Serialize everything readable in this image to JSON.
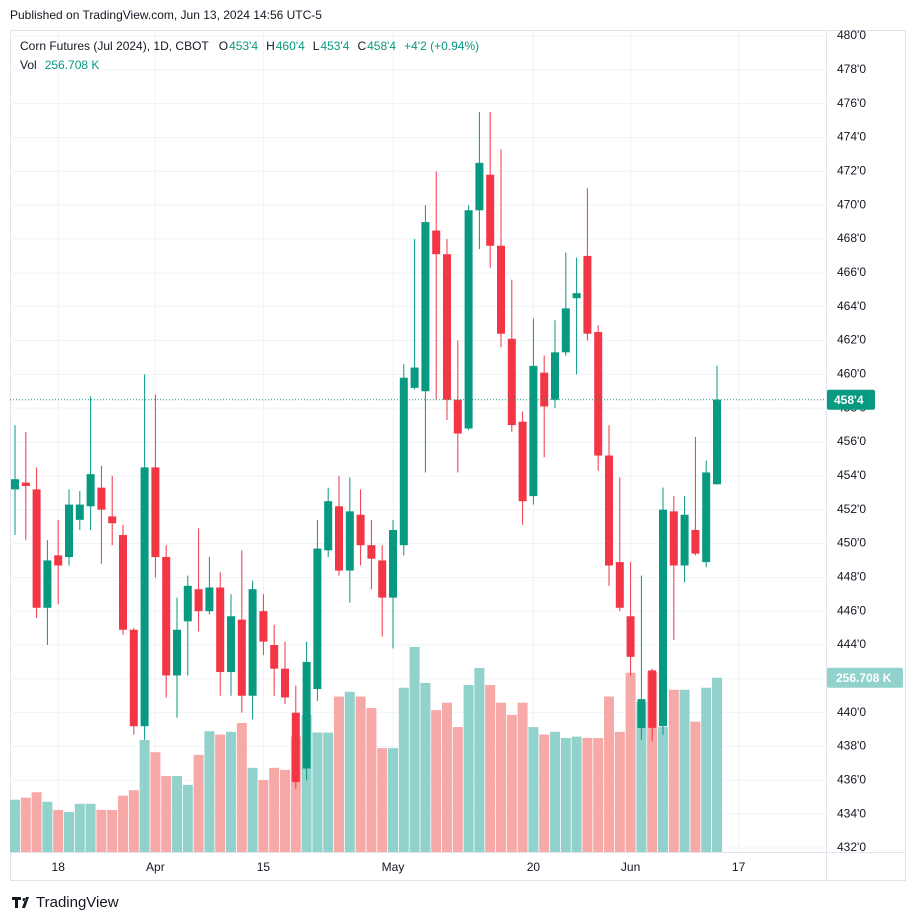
{
  "published": "Published on TradingView.com, Jun 13, 2024 14:56 UTC-5",
  "brand": "TradingView",
  "chart_data": {
    "type": "candlestick",
    "symbol": "Corn Futures (Jul 2024), 1D, CBOT",
    "legend": [
      {
        "key": "O",
        "text": "453'4"
      },
      {
        "key": "H",
        "text": "460'4"
      },
      {
        "key": "L",
        "text": "453'4"
      },
      {
        "key": "C",
        "text": "458'4"
      }
    ],
    "change": "+4'2 (+0.94%)",
    "volume_name": "Vol",
    "volume_label": "256.708 K",
    "last_price_label": "458'4",
    "up_color": "#089981",
    "down_color": "#f23645",
    "up_volume_color": "#92d2cc",
    "down_volume_color": "#f7a9a7",
    "categories": [
      null,
      null,
      null,
      null,
      "18",
      null,
      null,
      null,
      null,
      null,
      null,
      null,
      null,
      "Apr",
      null,
      null,
      null,
      null,
      null,
      null,
      null,
      null,
      null,
      "15",
      null,
      null,
      null,
      null,
      null,
      null,
      null,
      null,
      null,
      null,
      null,
      "May",
      null,
      null,
      null,
      null,
      null,
      null,
      null,
      null,
      null,
      null,
      null,
      null,
      "20",
      null,
      null,
      null,
      null,
      null,
      null,
      null,
      null,
      "Jun",
      null,
      null,
      null,
      null,
      null,
      null,
      null,
      null,
      null,
      "17"
    ],
    "open": [
      453.2,
      453.6,
      453.2,
      446.2,
      449.3,
      449.2,
      451.4,
      452.2,
      453.3,
      451.6,
      450.5,
      444.9,
      439.2,
      454.5,
      449.2,
      442.2,
      445.4,
      447.3,
      446.0,
      447.4,
      442.4,
      445.5,
      441.0,
      446.0,
      444.0,
      442.6,
      440.0,
      436.7,
      441.4,
      449.6,
      452.2,
      448.4,
      451.7,
      449.9,
      449.0,
      446.8,
      449.9,
      459.2,
      459.0,
      468.5,
      467.1,
      458.5,
      456.8,
      469.7,
      471.8,
      467.6,
      462.1,
      457.2,
      452.8,
      460.1,
      458.5,
      461.3,
      464.5,
      467.0,
      462.5,
      455.2,
      448.9,
      445.7,
      439.1,
      442.5,
      439.2,
      451.9,
      448.7,
      450.8,
      448.9,
      453.5,
      null,
      null
    ],
    "high": [
      457.0,
      456.6,
      454.5,
      450.2,
      451.4,
      453.2,
      453.1,
      458.7,
      454.6,
      454.0,
      451.1,
      445.0,
      460.0,
      458.8,
      449.9,
      446.8,
      448.1,
      450.9,
      449.2,
      448.3,
      447.0,
      449.6,
      447.8,
      447.0,
      445.2,
      444.2,
      441.6,
      444.2,
      451.4,
      453.3,
      454.0,
      453.9,
      453.2,
      451.4,
      449.9,
      451.4,
      460.6,
      468.0,
      470.0,
      472.0,
      468.0,
      462.0,
      470.0,
      475.5,
      475.5,
      473.3,
      465.6,
      457.8,
      463.3,
      461.1,
      463.2,
      467.2,
      466.9,
      471.0,
      462.9,
      457.0,
      453.9,
      448.9,
      448.1,
      442.6,
      453.3,
      452.8,
      452.8,
      456.3,
      454.9,
      460.5,
      null,
      null
    ],
    "low": [
      450.5,
      450.2,
      445.6,
      444.0,
      446.4,
      448.7,
      450.8,
      450.8,
      448.8,
      449.9,
      444.6,
      438.7,
      438.4,
      448.0,
      440.9,
      439.7,
      442.2,
      444.8,
      445.8,
      441.0,
      441.0,
      440.0,
      439.6,
      443.4,
      441.0,
      440.5,
      435.5,
      436.0,
      440.7,
      449.2,
      448.1,
      446.5,
      448.7,
      447.3,
      444.5,
      443.8,
      449.3,
      459.1,
      454.2,
      458.5,
      457.3,
      454.2,
      456.7,
      467.4,
      466.3,
      461.6,
      456.6,
      451.1,
      452.3,
      455.1,
      458.0,
      461.1,
      460.0,
      462.0,
      454.3,
      447.5,
      446.0,
      442.2,
      438.4,
      438.3,
      438.7,
      444.3,
      447.7,
      449.3,
      448.6,
      453.5,
      null,
      null
    ],
    "close": [
      453.8,
      453.4,
      446.2,
      449.0,
      448.7,
      452.3,
      452.3,
      454.1,
      452.0,
      451.2,
      444.9,
      439.2,
      454.5,
      449.2,
      442.2,
      444.9,
      447.5,
      446.0,
      447.4,
      442.4,
      445.7,
      441.0,
      447.3,
      444.2,
      442.6,
      440.9,
      435.9,
      443.0,
      449.7,
      452.5,
      448.4,
      451.9,
      449.9,
      449.1,
      446.8,
      450.8,
      459.8,
      460.4,
      469.0,
      467.1,
      458.5,
      456.5,
      469.7,
      472.5,
      467.6,
      462.4,
      457.0,
      452.5,
      460.5,
      458.1,
      461.3,
      463.9,
      464.8,
      462.4,
      455.2,
      448.7,
      446.2,
      443.3,
      440.8,
      439.1,
      452.0,
      448.7,
      451.7,
      449.4,
      454.2,
      458.5,
      null,
      null
    ],
    "volume": [
      77,
      80,
      88,
      74,
      62,
      59,
      71,
      71,
      62,
      62,
      83,
      91,
      165,
      147,
      112,
      112,
      99,
      143,
      178,
      173,
      177,
      190,
      124,
      106,
      124,
      121,
      170,
      202,
      176,
      176,
      229,
      236,
      229,
      212,
      153,
      153,
      242,
      302,
      249,
      209,
      220,
      184,
      246,
      271,
      246,
      220,
      202,
      220,
      184,
      173,
      177,
      168,
      170,
      168,
      168,
      229,
      177,
      264,
      221,
      265,
      184,
      239,
      239,
      192,
      242,
      256.708,
      null,
      null
    ],
    "ylim": [
      432,
      480
    ],
    "yticks": [
      {
        "value": 432,
        "label": "432'0"
      },
      {
        "value": 434,
        "label": "434'0"
      },
      {
        "value": 436,
        "label": "436'0"
      },
      {
        "value": 438,
        "label": "438'0"
      },
      {
        "value": 440,
        "label": "440'0"
      },
      {
        "value": 442,
        "label": "442'0"
      },
      {
        "value": 444,
        "label": "444'0"
      },
      {
        "value": 446,
        "label": "446'0"
      },
      {
        "value": 448,
        "label": "448'0"
      },
      {
        "value": 450,
        "label": "450'0"
      },
      {
        "value": 452,
        "label": "452'0"
      },
      {
        "value": 454,
        "label": "454'0"
      },
      {
        "value": 456,
        "label": "456'0"
      },
      {
        "value": 458,
        "label": "458'0"
      },
      {
        "value": 460,
        "label": "460'0"
      },
      {
        "value": 462,
        "label": "462'0"
      },
      {
        "value": 464,
        "label": "464'0"
      },
      {
        "value": 466,
        "label": "466'0"
      },
      {
        "value": 468,
        "label": "468'0"
      },
      {
        "value": 470,
        "label": "470'0"
      },
      {
        "value": 472,
        "label": "472'0"
      },
      {
        "value": 474,
        "label": "474'0"
      },
      {
        "value": 476,
        "label": "476'0"
      },
      {
        "value": 478,
        "label": "478'0"
      },
      {
        "value": 480,
        "label": "480'0"
      }
    ],
    "grid": true
  }
}
